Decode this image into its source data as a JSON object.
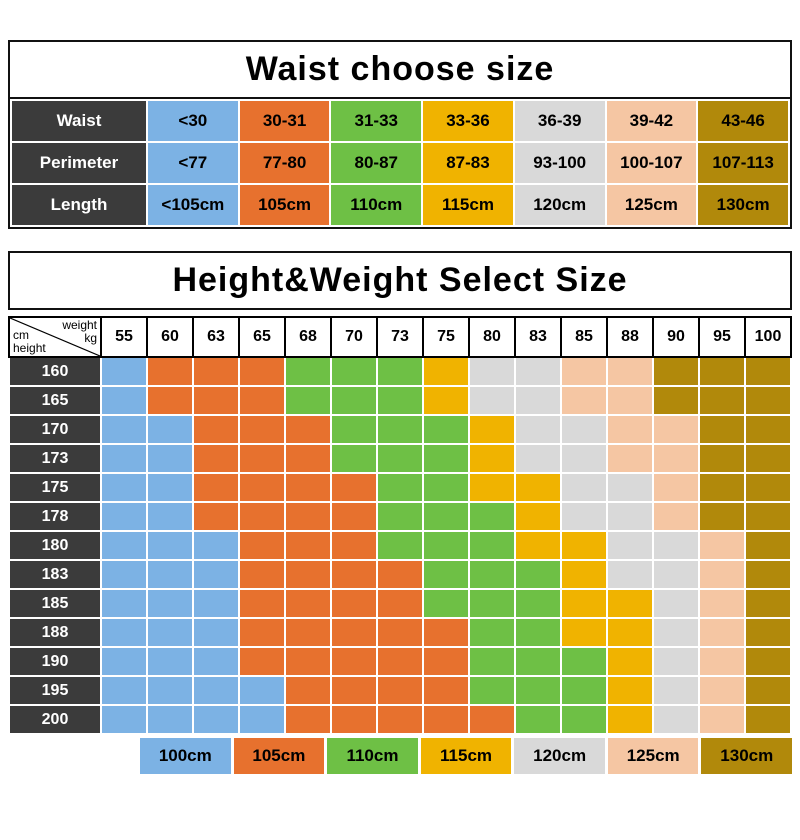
{
  "colors": {
    "blue": "#7cb2e4",
    "orange": "#e7712e",
    "green": "#6ec045",
    "yellow": "#f0b300",
    "gray": "#d9d9d9",
    "peach": "#f5c6a3",
    "dark_gold": "#b1890b",
    "header_dark": "#3b3b3b",
    "border": "#111111",
    "white": "#ffffff"
  },
  "matrix_corner": {
    "weight_label": "weight",
    "weight_unit": "kg",
    "height_unit": "cm",
    "height_label": "height"
  },
  "chart_data": [
    {
      "type": "table",
      "title": "Waist choose size",
      "row_labels": [
        "Waist",
        "Perimeter",
        "Length"
      ],
      "column_colors": [
        "blue",
        "orange",
        "green",
        "yellow",
        "gray",
        "peach",
        "dark_gold"
      ],
      "rows": [
        [
          "<30",
          "30-31",
          "31-33",
          "33-36",
          "36-39",
          "39-42",
          "43-46"
        ],
        [
          "<77",
          "77-80",
          "80-87",
          "87-83",
          "93-100",
          "100-107",
          "107-113"
        ],
        [
          "<105cm",
          "105cm",
          "110cm",
          "115cm",
          "120cm",
          "125cm",
          "130cm"
        ]
      ]
    },
    {
      "type": "heatmap",
      "title": "Height&Weight Select Size",
      "x_label": "weight kg",
      "y_label": "cm height",
      "x": [
        "55",
        "60",
        "63",
        "65",
        "68",
        "70",
        "73",
        "75",
        "80",
        "83",
        "85",
        "88",
        "90",
        "95",
        "100"
      ],
      "y": [
        "160",
        "165",
        "170",
        "173",
        "175",
        "178",
        "180",
        "183",
        "185",
        "188",
        "190",
        "195",
        "200"
      ],
      "code_colors": {
        "B": "blue",
        "O": "orange",
        "G": "green",
        "Y": "yellow",
        "S": "gray",
        "P": "peach",
        "D": "dark_gold"
      },
      "code_sizes": {
        "B": "100cm",
        "O": "105cm",
        "G": "110cm",
        "Y": "115cm",
        "S": "120cm",
        "P": "125cm",
        "D": "130cm"
      },
      "values": [
        "BOOOGGGYSSPPDDD",
        "BOOOGGGYSSPPDDD",
        "BBOOOGGGYSSPPDD",
        "BBOOOGGGYSSPPDD",
        "BBOOOOGGYYSSPDD",
        "BBOOOOGGGYSSPDD",
        "BBBOOOGGGYYSSPD",
        "BBBOOOOGGGYSSPD",
        "BBBOOOOGGGYYSPD",
        "BBBOOOOOGGYYSPD",
        "BBBOOOOOGGGYSPD",
        "BBBBOOOOGGGYSPD",
        "BBBBOOOOOGGYSPD"
      ],
      "legend": [
        "100cm",
        "105cm",
        "110cm",
        "115cm",
        "120cm",
        "125cm",
        "130cm"
      ],
      "legend_colors": [
        "blue",
        "orange",
        "green",
        "yellow",
        "gray",
        "peach",
        "dark_gold"
      ]
    }
  ]
}
